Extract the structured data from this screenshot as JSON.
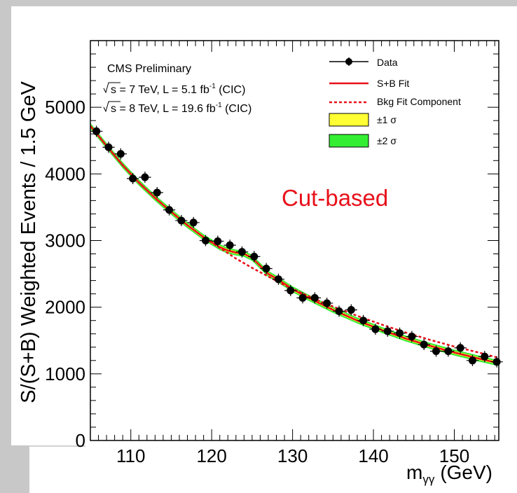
{
  "chart_data": {
    "type": "scatter",
    "ylabel": "S/(S+B) Weighted Events / 1.5 GeV",
    "xlabel": "m",
    "xlabel_sub": "γγ",
    "xlabel_unit": "(GeV)",
    "xlim": [
      105,
      155.5
    ],
    "ylim": [
      0,
      6000
    ],
    "x_ticks": [
      110,
      120,
      130,
      140,
      150
    ],
    "y_ticks": [
      0,
      1000,
      2000,
      3000,
      4000,
      5000
    ],
    "annotation": "Cut-based",
    "annotation_color": "#e8101a",
    "info_lines": {
      "l1": "CMS Preliminary",
      "l2a": "s = 7 TeV, L = 5.1 fb",
      "l2b": " (CIC)",
      "l3a": "s = 8 TeV, L = 19.6 fb",
      "l3b": " (CIC)",
      "sup": "-1"
    },
    "legend": {
      "data": "Data",
      "sb": "S+B Fit",
      "bkg": "Bkg Fit Component",
      "s1": "±1 σ",
      "s2": "±2 σ"
    },
    "legend_placement": "top-right",
    "colors": {
      "data": "#000000",
      "fit": "#e8101a",
      "bkg": "#e8101a",
      "band1": "#ffff33",
      "band2": "#33ee33"
    },
    "series": [
      {
        "name": "Data",
        "x": [
          105.75,
          107.25,
          108.75,
          110.25,
          111.75,
          113.25,
          114.75,
          116.25,
          117.75,
          119.25,
          120.75,
          122.25,
          123.75,
          125.25,
          126.75,
          128.25,
          129.75,
          131.25,
          132.75,
          134.25,
          135.75,
          137.25,
          138.75,
          140.25,
          141.75,
          143.25,
          144.75,
          146.25,
          147.75,
          149.25,
          150.75,
          152.25,
          153.75,
          155.25
        ],
        "y": [
          4640,
          4400,
          4300,
          3930,
          3950,
          3720,
          3460,
          3300,
          3270,
          3000,
          2990,
          2930,
          2830,
          2760,
          2580,
          2420,
          2250,
          2140,
          2140,
          2060,
          1940,
          1960,
          1800,
          1670,
          1640,
          1610,
          1560,
          1440,
          1340,
          1340,
          1390,
          1200,
          1260,
          1180
        ]
      },
      {
        "name": "S+B Fit",
        "x": [
          105,
          107,
          109,
          111,
          113,
          115,
          117,
          119,
          121,
          122,
          123,
          124,
          125,
          126,
          127,
          128,
          130,
          132,
          135,
          138,
          141,
          144,
          147,
          150,
          153,
          155.5
        ],
        "y": [
          4720,
          4420,
          4130,
          3870,
          3640,
          3430,
          3230,
          3050,
          2900,
          2850,
          2820,
          2800,
          2740,
          2620,
          2500,
          2430,
          2270,
          2140,
          1960,
          1800,
          1660,
          1530,
          1420,
          1320,
          1230,
          1160
        ]
      },
      {
        "name": "Bkg Fit Component",
        "x": [
          105,
          107,
          109,
          111,
          113,
          115,
          117,
          119,
          121,
          123,
          125,
          127,
          129,
          131,
          133,
          135,
          138,
          141,
          144,
          147,
          150,
          153,
          155.5
        ],
        "y": [
          4720,
          4420,
          4130,
          3870,
          3640,
          3430,
          3230,
          3050,
          2890,
          2730,
          2590,
          2460,
          2330,
          2220,
          2110,
          2010,
          1870,
          1740,
          1620,
          1510,
          1410,
          1320,
          1240
        ]
      }
    ]
  }
}
